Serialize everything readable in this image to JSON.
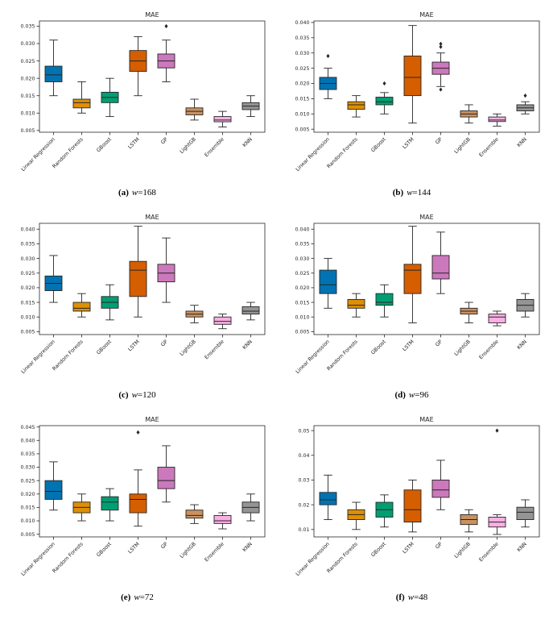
{
  "palette": [
    "#0173b2",
    "#de8f05",
    "#029e73",
    "#d55e00",
    "#cc78bc",
    "#ca9161",
    "#fbafe4",
    "#949494"
  ],
  "axis_color": "#262626",
  "chart_data": [
    {
      "type": "box",
      "title": "MAE",
      "caption": {
        "label": "(a)",
        "var": "w",
        "value": "=168"
      },
      "categories": [
        "Linear Regression",
        "Random Forests",
        "GBoost",
        "LSTM",
        "GP",
        "LightGB",
        "Ensemble",
        "KNN"
      ],
      "ylim": [
        0.0045,
        0.0365
      ],
      "yticks": [
        0.005,
        0.01,
        0.015,
        0.02,
        0.025,
        0.03,
        0.035
      ],
      "decimals": 3,
      "ylabel": "",
      "grid": false,
      "series": [
        {
          "name": "Linear Regression",
          "low": 0.015,
          "q1": 0.019,
          "median": 0.021,
          "q3": 0.0235,
          "high": 0.031,
          "outliers": []
        },
        {
          "name": "Random Forests",
          "low": 0.01,
          "q1": 0.0115,
          "median": 0.013,
          "q3": 0.014,
          "high": 0.019,
          "outliers": []
        },
        {
          "name": "GBoost",
          "low": 0.009,
          "q1": 0.013,
          "median": 0.0145,
          "q3": 0.016,
          "high": 0.02,
          "outliers": []
        },
        {
          "name": "LSTM",
          "low": 0.015,
          "q1": 0.022,
          "median": 0.025,
          "q3": 0.028,
          "high": 0.032,
          "outliers": []
        },
        {
          "name": "GP",
          "low": 0.019,
          "q1": 0.023,
          "median": 0.025,
          "q3": 0.027,
          "high": 0.031,
          "outliers": [
            0.035
          ]
        },
        {
          "name": "LightGB",
          "low": 0.008,
          "q1": 0.0095,
          "median": 0.0105,
          "q3": 0.0115,
          "high": 0.014,
          "outliers": []
        },
        {
          "name": "Ensemble",
          "low": 0.006,
          "q1": 0.0075,
          "median": 0.008,
          "q3": 0.009,
          "high": 0.0105,
          "outliers": []
        },
        {
          "name": "KNN",
          "low": 0.009,
          "q1": 0.011,
          "median": 0.012,
          "q3": 0.013,
          "high": 0.015,
          "outliers": []
        }
      ]
    },
    {
      "type": "box",
      "title": "MAE",
      "caption": {
        "label": "(b)",
        "var": "w",
        "value": "=144"
      },
      "categories": [
        "Linear Regression",
        "Random Forests",
        "GBoost",
        "LSTM",
        "GP",
        "LightGB",
        "Ensemble",
        "KNN"
      ],
      "ylim": [
        0.004,
        0.0405
      ],
      "yticks": [
        0.005,
        0.01,
        0.015,
        0.02,
        0.025,
        0.03,
        0.035,
        0.04
      ],
      "decimals": 3,
      "ylabel": "",
      "grid": false,
      "series": [
        {
          "name": "Linear Regression",
          "low": 0.015,
          "q1": 0.018,
          "median": 0.02,
          "q3": 0.022,
          "high": 0.025,
          "outliers": [
            0.029
          ]
        },
        {
          "name": "Random Forests",
          "low": 0.009,
          "q1": 0.0115,
          "median": 0.013,
          "q3": 0.014,
          "high": 0.016,
          "outliers": []
        },
        {
          "name": "GBoost",
          "low": 0.01,
          "q1": 0.013,
          "median": 0.014,
          "q3": 0.0155,
          "high": 0.017,
          "outliers": [
            0.02
          ]
        },
        {
          "name": "LSTM",
          "low": 0.007,
          "q1": 0.016,
          "median": 0.022,
          "q3": 0.029,
          "high": 0.039,
          "outliers": []
        },
        {
          "name": "GP",
          "low": 0.019,
          "q1": 0.023,
          "median": 0.025,
          "q3": 0.027,
          "high": 0.03,
          "outliers": [
            0.033,
            0.032,
            0.018
          ]
        },
        {
          "name": "LightGB",
          "low": 0.007,
          "q1": 0.009,
          "median": 0.01,
          "q3": 0.011,
          "high": 0.013,
          "outliers": []
        },
        {
          "name": "Ensemble",
          "low": 0.006,
          "q1": 0.0075,
          "median": 0.008,
          "q3": 0.009,
          "high": 0.01,
          "outliers": []
        },
        {
          "name": "KNN",
          "low": 0.01,
          "q1": 0.011,
          "median": 0.012,
          "q3": 0.013,
          "high": 0.014,
          "outliers": [
            0.016
          ]
        }
      ]
    },
    {
      "type": "box",
      "title": "MAE",
      "caption": {
        "label": "(c)",
        "var": "w",
        "value": "=120"
      },
      "categories": [
        "Linear Regression",
        "Random Forests",
        "GBoost",
        "LSTM",
        "GP",
        "LightGB",
        "Ensemble",
        "KNN"
      ],
      "ylim": [
        0.004,
        0.042
      ],
      "yticks": [
        0.005,
        0.01,
        0.015,
        0.02,
        0.025,
        0.03,
        0.035,
        0.04
      ],
      "decimals": 3,
      "ylabel": "",
      "grid": false,
      "series": [
        {
          "name": "Linear Regression",
          "low": 0.015,
          "q1": 0.019,
          "median": 0.0215,
          "q3": 0.024,
          "high": 0.031,
          "outliers": []
        },
        {
          "name": "Random Forests",
          "low": 0.01,
          "q1": 0.012,
          "median": 0.013,
          "q3": 0.015,
          "high": 0.018,
          "outliers": []
        },
        {
          "name": "GBoost",
          "low": 0.009,
          "q1": 0.013,
          "median": 0.015,
          "q3": 0.017,
          "high": 0.021,
          "outliers": []
        },
        {
          "name": "LSTM",
          "low": 0.01,
          "q1": 0.017,
          "median": 0.026,
          "q3": 0.029,
          "high": 0.041,
          "outliers": []
        },
        {
          "name": "GP",
          "low": 0.015,
          "q1": 0.022,
          "median": 0.025,
          "q3": 0.028,
          "high": 0.037,
          "outliers": []
        },
        {
          "name": "LightGB",
          "low": 0.008,
          "q1": 0.01,
          "median": 0.011,
          "q3": 0.012,
          "high": 0.014,
          "outliers": []
        },
        {
          "name": "Ensemble",
          "low": 0.006,
          "q1": 0.0075,
          "median": 0.0085,
          "q3": 0.01,
          "high": 0.011,
          "outliers": []
        },
        {
          "name": "KNN",
          "low": 0.009,
          "q1": 0.011,
          "median": 0.012,
          "q3": 0.0135,
          "high": 0.015,
          "outliers": []
        }
      ]
    },
    {
      "type": "box",
      "title": "MAE",
      "caption": {
        "label": "(d)",
        "var": "w",
        "value": "=96"
      },
      "categories": [
        "Linear Regression",
        "Random Forests",
        "GBoost",
        "LSTM",
        "GP",
        "LightGB",
        "Ensemble",
        "KNN"
      ],
      "ylim": [
        0.004,
        0.042
      ],
      "yticks": [
        0.005,
        0.01,
        0.015,
        0.02,
        0.025,
        0.03,
        0.035,
        0.04
      ],
      "decimals": 3,
      "ylabel": "",
      "grid": false,
      "series": [
        {
          "name": "Linear Regression",
          "low": 0.013,
          "q1": 0.018,
          "median": 0.021,
          "q3": 0.026,
          "high": 0.03,
          "outliers": []
        },
        {
          "name": "Random Forests",
          "low": 0.01,
          "q1": 0.013,
          "median": 0.014,
          "q3": 0.016,
          "high": 0.018,
          "outliers": []
        },
        {
          "name": "GBoost",
          "low": 0.01,
          "q1": 0.014,
          "median": 0.015,
          "q3": 0.018,
          "high": 0.021,
          "outliers": []
        },
        {
          "name": "LSTM",
          "low": 0.008,
          "q1": 0.018,
          "median": 0.026,
          "q3": 0.028,
          "high": 0.041,
          "outliers": []
        },
        {
          "name": "GP",
          "low": 0.018,
          "q1": 0.023,
          "median": 0.025,
          "q3": 0.031,
          "high": 0.039,
          "outliers": []
        },
        {
          "name": "LightGB",
          "low": 0.008,
          "q1": 0.011,
          "median": 0.012,
          "q3": 0.013,
          "high": 0.015,
          "outliers": []
        },
        {
          "name": "Ensemble",
          "low": 0.007,
          "q1": 0.008,
          "median": 0.01,
          "q3": 0.011,
          "high": 0.012,
          "outliers": []
        },
        {
          "name": "KNN",
          "low": 0.01,
          "q1": 0.012,
          "median": 0.014,
          "q3": 0.016,
          "high": 0.018,
          "outliers": []
        }
      ]
    },
    {
      "type": "box",
      "title": "MAE",
      "caption": {
        "label": "(e)",
        "var": "w",
        "value": "=72"
      },
      "categories": [
        "Linear Regression",
        "Random Forests",
        "GBoost",
        "LSTM",
        "GP",
        "LightGB",
        "Ensemble",
        "KNN"
      ],
      "ylim": [
        0.004,
        0.0455
      ],
      "yticks": [
        0.005,
        0.01,
        0.015,
        0.02,
        0.025,
        0.03,
        0.035,
        0.04,
        0.045
      ],
      "decimals": 3,
      "ylabel": "",
      "grid": false,
      "series": [
        {
          "name": "Linear Regression",
          "low": 0.014,
          "q1": 0.018,
          "median": 0.021,
          "q3": 0.025,
          "high": 0.032,
          "outliers": []
        },
        {
          "name": "Random Forests",
          "low": 0.01,
          "q1": 0.013,
          "median": 0.015,
          "q3": 0.017,
          "high": 0.02,
          "outliers": []
        },
        {
          "name": "GBoost",
          "low": 0.01,
          "q1": 0.014,
          "median": 0.017,
          "q3": 0.019,
          "high": 0.022,
          "outliers": []
        },
        {
          "name": "LSTM",
          "low": 0.008,
          "q1": 0.013,
          "median": 0.018,
          "q3": 0.02,
          "high": 0.029,
          "outliers": [
            0.043
          ]
        },
        {
          "name": "GP",
          "low": 0.017,
          "q1": 0.022,
          "median": 0.025,
          "q3": 0.03,
          "high": 0.038,
          "outliers": []
        },
        {
          "name": "LightGB",
          "low": 0.009,
          "q1": 0.011,
          "median": 0.012,
          "q3": 0.014,
          "high": 0.016,
          "outliers": []
        },
        {
          "name": "Ensemble",
          "low": 0.007,
          "q1": 0.009,
          "median": 0.01,
          "q3": 0.012,
          "high": 0.013,
          "outliers": []
        },
        {
          "name": "KNN",
          "low": 0.01,
          "q1": 0.013,
          "median": 0.015,
          "q3": 0.017,
          "high": 0.02,
          "outliers": []
        }
      ]
    },
    {
      "type": "box",
      "title": "MAE",
      "caption": {
        "label": "(f)",
        "var": "w",
        "value": "=48"
      },
      "categories": [
        "Linear Regression",
        "Random Forests",
        "GBoost",
        "LSTM",
        "GP",
        "LightGB",
        "Ensemble",
        "KNN"
      ],
      "ylim": [
        0.007,
        0.052
      ],
      "yticks": [
        0.01,
        0.02,
        0.03,
        0.04,
        0.05
      ],
      "decimals": 2,
      "ylabel": "",
      "grid": false,
      "series": [
        {
          "name": "Linear Regression",
          "low": 0.014,
          "q1": 0.02,
          "median": 0.022,
          "q3": 0.025,
          "high": 0.032,
          "outliers": []
        },
        {
          "name": "Random Forests",
          "low": 0.01,
          "q1": 0.014,
          "median": 0.016,
          "q3": 0.018,
          "high": 0.021,
          "outliers": []
        },
        {
          "name": "GBoost",
          "low": 0.011,
          "q1": 0.015,
          "median": 0.018,
          "q3": 0.021,
          "high": 0.024,
          "outliers": []
        },
        {
          "name": "LSTM",
          "low": 0.009,
          "q1": 0.013,
          "median": 0.018,
          "q3": 0.026,
          "high": 0.03,
          "outliers": []
        },
        {
          "name": "GP",
          "low": 0.018,
          "q1": 0.023,
          "median": 0.026,
          "q3": 0.03,
          "high": 0.038,
          "outliers": []
        },
        {
          "name": "LightGB",
          "low": 0.009,
          "q1": 0.012,
          "median": 0.014,
          "q3": 0.016,
          "high": 0.018,
          "outliers": []
        },
        {
          "name": "Ensemble",
          "low": 0.008,
          "q1": 0.011,
          "median": 0.013,
          "q3": 0.015,
          "high": 0.016,
          "outliers": [
            0.05
          ]
        },
        {
          "name": "KNN",
          "low": 0.011,
          "q1": 0.014,
          "median": 0.017,
          "q3": 0.019,
          "high": 0.022,
          "outliers": []
        }
      ]
    }
  ]
}
